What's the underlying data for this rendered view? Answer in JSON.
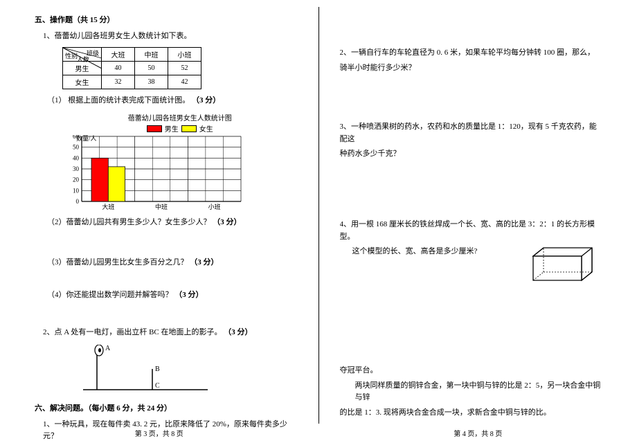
{
  "left": {
    "sec5_title": "五、操作题（共 15 分）",
    "q1_intro": "1、蓓蕾幼儿园各班男女生人数统计如下表。",
    "table": {
      "diag_top": "班级",
      "diag_mid": "人数",
      "diag_bot": "性别",
      "cols": [
        "大班",
        "中班",
        "小班"
      ],
      "rows": [
        {
          "label": "男生",
          "vals": [
            "40",
            "50",
            "52"
          ]
        },
        {
          "label": "女生",
          "vals": [
            "32",
            "38",
            "42"
          ]
        }
      ]
    },
    "sub1": "（1）  根据上面的统计表完成下面统计图。",
    "pts3": "（3 分）",
    "chart": {
      "title": "蓓蕾幼儿园各班男女生人数统计图",
      "legend_boys": "男生",
      "legend_girls": "女生",
      "y_label": "数量/人",
      "y_ticks": [
        "60",
        "50",
        "40",
        "30",
        "20",
        "10",
        "0"
      ],
      "x_cats": [
        "大班",
        "中班",
        "小班"
      ],
      "boys_color": "#ff0000",
      "girls_color": "#ffff00",
      "bar_boys_val": 40,
      "bar_girls_val": 32,
      "y_max": 60,
      "grid_color": "#000000",
      "bg_color": "#ffffff"
    },
    "sub2": "（2）蓓蕾幼儿园共有男生多少人？女生多少人？",
    "sub3": "（3）蓓蕾幼儿园男生比女生多百分之几？",
    "sub4": "（4）你还能提出数学问题并解答吗？",
    "q2": "2、点 A 处有一电灯，画出立杆 BC 在地面上的影子。",
    "lamp": {
      "labelA": "A",
      "labelB": "B",
      "labelC": "C"
    },
    "sec6_title": "六、解决问题。（每小题 6 分，共 24 分）",
    "sec6_q1": "1、一种玩具，现在每件卖 43. 2 元，比原来降低了 20%，原来每件卖多少元？",
    "footer": "第 3 页，共 8 页"
  },
  "right": {
    "q2a": "2、一辆自行车的车轮直径为 0. 6 米，如果车轮平均每分钟转 100 圈，那么，",
    "q2b": "骑半小时能行多少米？",
    "q3a": "3、一种喷洒果树的药水，农药和水的质量比是 1：120，现有 5 千克农药，能配这",
    "q3b": "种药水多少千克？",
    "q4a": "4、用一根 168 厘米长的铁丝焊成一个长、宽、高的比是 3：2：1 的长方形模型。",
    "q4b": "这个模型的长、宽、高各是多少厘米?",
    "bonus_title": "夺冠平台。",
    "bonus_a": "两块同样质量的铜锌合金，第一块中铜与锌的比是 2：5，另一块合金中铜与锌",
    "bonus_b": "的比是 1：3. 现将两块合金合成一块，求新合金中铜与锌的比。",
    "footer": "第 4 页，共 8 页"
  }
}
